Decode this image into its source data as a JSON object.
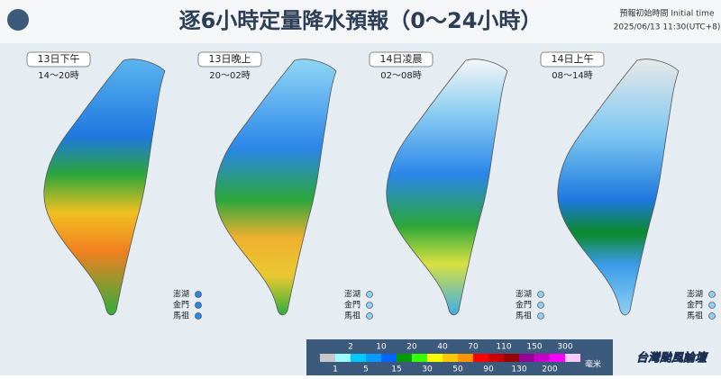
{
  "header": {
    "title": "逐6小時定量降水預報（0～24小時）",
    "init_label": "預報初始時間 Initial time",
    "init_time": "2025/06/13 11:30(UTC+8)"
  },
  "panels": [
    {
      "day": "13日下午",
      "hours": "14～20時"
    },
    {
      "day": "13日晚上",
      "hours": "20～02時"
    },
    {
      "day": "14日凌晨",
      "hours": "02～08時"
    },
    {
      "day": "14日上午",
      "hours": "08～14時"
    }
  ],
  "islands": [
    "澎湖",
    "金門",
    "馬祖"
  ],
  "legend": {
    "upper": [
      2,
      10,
      20,
      40,
      70,
      110,
      150,
      300
    ],
    "lower": [
      1,
      5,
      15,
      30,
      50,
      90,
      130,
      200
    ],
    "unit": "毫米",
    "colors": [
      "#c8c8c8",
      "#9bfcff",
      "#03c8ff",
      "#059bff",
      "#0363ff",
      "#059902",
      "#39ff03",
      "#fffb03",
      "#ffc800",
      "#ff9500",
      "#ff0000",
      "#cc0000",
      "#990000",
      "#960099",
      "#c900cc",
      "#fb00ff",
      "#fdc9ff"
    ]
  },
  "footer": {
    "brand": "台灣颱風論壇"
  }
}
